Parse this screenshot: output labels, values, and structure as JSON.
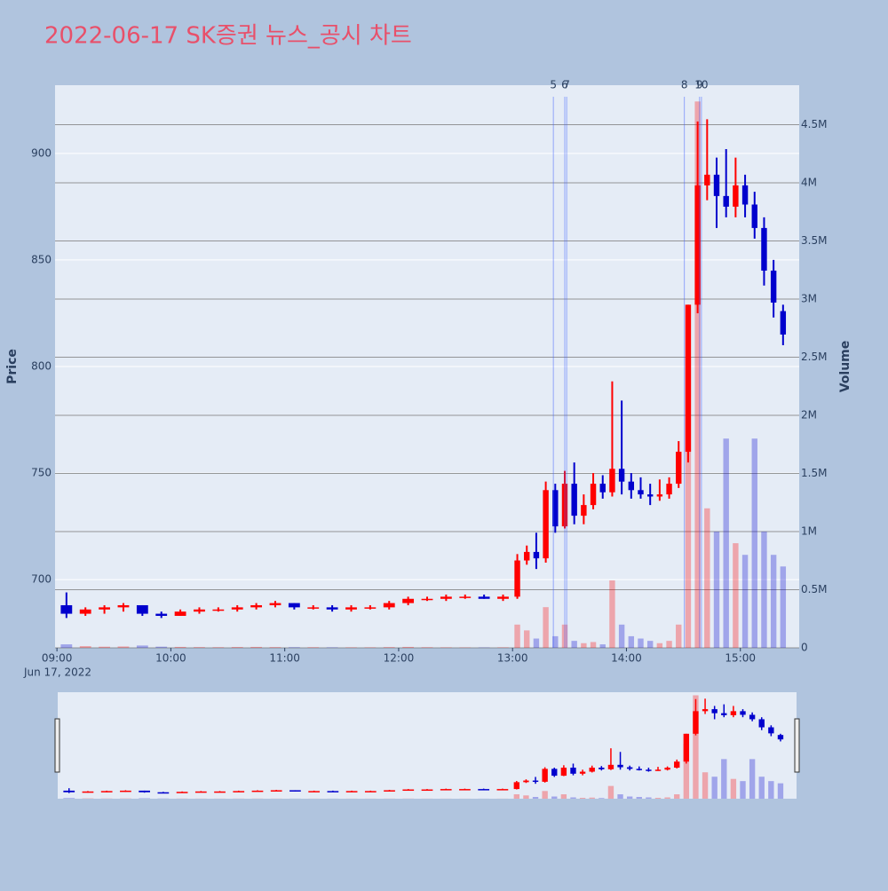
{
  "chart_data": {
    "type": "candlestick",
    "title": "2022-06-17 SK증권 뉴스_공시 차트",
    "y_title": "Price",
    "y2_title": "Volume",
    "x": [
      "09:00",
      "09:10",
      "09:20",
      "09:30",
      "09:40",
      "09:50",
      "10:00",
      "10:10",
      "10:20",
      "10:30",
      "10:40",
      "10:50",
      "11:00",
      "11:10",
      "11:20",
      "11:30",
      "11:40",
      "11:50",
      "12:00",
      "12:10",
      "12:20",
      "12:30",
      "12:40",
      "12:50",
      "13:00",
      "13:05",
      "13:10",
      "13:15",
      "13:20",
      "13:25",
      "13:30",
      "13:35",
      "13:40",
      "13:45",
      "13:50",
      "13:55",
      "14:00",
      "14:05",
      "14:10",
      "14:15",
      "14:20",
      "14:25",
      "14:30",
      "14:35",
      "14:40",
      "14:45",
      "14:50",
      "14:55",
      "15:00",
      "15:05",
      "15:10",
      "15:15",
      "15:20"
    ],
    "open": [
      688,
      684,
      686,
      687,
      688,
      684,
      683,
      685,
      686,
      686,
      687,
      688,
      689,
      687,
      687,
      686,
      687,
      687,
      689,
      691,
      691,
      692,
      692,
      691,
      692,
      709,
      713,
      710,
      742,
      725,
      745,
      730,
      735,
      745,
      741,
      752,
      746,
      742,
      740,
      739,
      740,
      745,
      760,
      829,
      885,
      890,
      880,
      875,
      885,
      876,
      865,
      845,
      826
    ],
    "high": [
      694,
      687,
      688,
      689,
      688,
      685,
      686,
      687,
      687,
      688,
      689,
      690,
      689,
      688,
      688,
      688,
      688,
      690,
      692,
      692,
      693,
      693,
      693,
      693,
      712,
      716,
      722,
      746,
      745,
      751,
      755,
      740,
      750,
      749,
      793,
      784,
      750,
      748,
      745,
      747,
      748,
      765,
      829,
      915,
      916,
      898,
      902,
      898,
      890,
      882,
      870,
      850,
      829
    ],
    "low": [
      682,
      683,
      684,
      685,
      683,
      682,
      683,
      684,
      685,
      685,
      686,
      687,
      686,
      686,
      685,
      685,
      686,
      686,
      688,
      690,
      690,
      691,
      691,
      690,
      691,
      707,
      705,
      708,
      722,
      724,
      726,
      726,
      733,
      738,
      739,
      740,
      738,
      738,
      735,
      737,
      738,
      743,
      755,
      825,
      878,
      865,
      870,
      870,
      870,
      860,
      838,
      823,
      810
    ],
    "close": [
      684,
      686,
      687,
      688,
      684,
      683,
      685,
      686,
      686,
      687,
      688,
      689,
      687,
      687,
      686,
      687,
      687,
      689,
      691,
      691,
      692,
      692,
      691,
      692,
      709,
      713,
      710,
      742,
      725,
      745,
      730,
      735,
      745,
      741,
      752,
      746,
      742,
      740,
      739,
      740,
      745,
      760,
      829,
      885,
      890,
      880,
      875,
      885,
      876,
      865,
      845,
      830,
      815
    ],
    "volume": [
      30000,
      15000,
      10000,
      12000,
      20000,
      10000,
      8000,
      6000,
      5000,
      7000,
      8000,
      6000,
      5000,
      5000,
      4000,
      4000,
      4000,
      6000,
      8000,
      5000,
      4000,
      3000,
      3000,
      4000,
      200000,
      150000,
      80000,
      350000,
      100000,
      200000,
      60000,
      40000,
      50000,
      30000,
      580000,
      200000,
      100000,
      80000,
      60000,
      40000,
      60000,
      200000,
      2500000,
      4700000,
      1200000,
      1000000,
      1800000,
      900000,
      800000,
      1800000,
      1000000,
      800000,
      700000
    ],
    "increasing_color": "#ff0000",
    "decreasing_color": "#0000cd",
    "xlim": [
      "08:59",
      "15:31"
    ],
    "xticks": [
      "09:00",
      "10:00",
      "11:00",
      "12:00",
      "13:00",
      "14:00",
      "15:00"
    ],
    "x_date_label": "Jun 17, 2022",
    "ylim": [
      668,
      932
    ],
    "yticks": [
      700,
      750,
      800,
      850,
      900
    ],
    "y2lim": [
      0,
      4840000
    ],
    "y2ticks": [
      0,
      {
        "value": 500000,
        "label": "0.5M"
      },
      {
        "value": 1000000,
        "label": "1M"
      },
      {
        "value": 1500000,
        "label": "1.5M"
      },
      {
        "value": 2000000,
        "label": "2M"
      },
      {
        "value": 2500000,
        "label": "2.5M"
      },
      {
        "value": 3000000,
        "label": "3M"
      },
      {
        "value": 3500000,
        "label": "3.5M"
      },
      {
        "value": 4000000,
        "label": "4M"
      },
      {
        "value": 4500000,
        "label": "4.5M"
      }
    ],
    "news": [
      {
        "x": "13:21",
        "label": "5"
      },
      {
        "x": "13:27",
        "label": "6"
      },
      {
        "x": "13:28",
        "label": "7"
      },
      {
        "x": "14:30",
        "label": "8"
      },
      {
        "x": "14:38",
        "label": "9"
      },
      {
        "x": "14:39",
        "label": "10"
      }
    ]
  }
}
